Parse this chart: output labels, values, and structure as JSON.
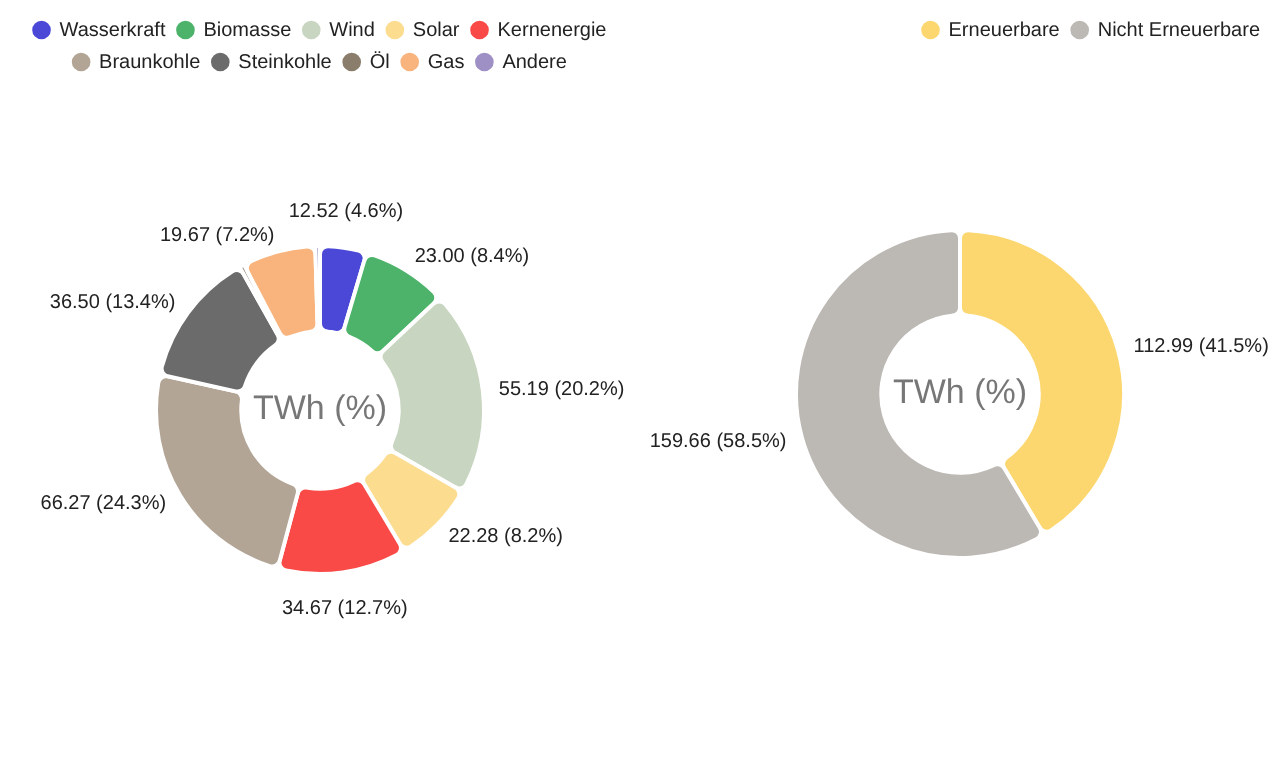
{
  "chart_data": [
    {
      "type": "donut",
      "categories": [
        "Wasserkraft",
        "Biomasse",
        "Wind",
        "Solar",
        "Kernenergie",
        "Braunkohle",
        "Steinkohle",
        "Öl",
        "Gas",
        "Andere"
      ],
      "values": [
        12.52,
        23.0,
        55.19,
        22.28,
        34.67,
        66.27,
        36.5,
        1.3,
        19.67,
        1.25
      ],
      "colors": [
        "#4b48d8",
        "#4db36a",
        "#c8d5c0",
        "#fcdc8e",
        "#f94a48",
        "#b2a595",
        "#6b6b6b",
        "#8a7d6c",
        "#f8b47c",
        "#9e8fc4"
      ],
      "value_labels": [
        "12.52 (4.6%)",
        "23.00 (8.4%)",
        "55.19 (20.2%)",
        "22.28 (8.2%)",
        "34.67 (12.7%)",
        "66.27 (24.3%)",
        "36.50 (13.4%)",
        null,
        "19.67 (7.2%)",
        null
      ],
      "annotations": [
        "TWh (%)"
      ],
      "legend": "top"
    },
    {
      "type": "donut",
      "categories": [
        "Erneuerbare",
        "Nicht Erneuerbare"
      ],
      "values": [
        112.99,
        159.66
      ],
      "colors": [
        "#fcd770",
        "#bcb8b4"
      ],
      "value_labels": [
        "112.99 (41.5%)",
        "159.66 (58.5%)"
      ],
      "annotations": [
        "TWh (%)"
      ],
      "legend": "top right"
    }
  ]
}
